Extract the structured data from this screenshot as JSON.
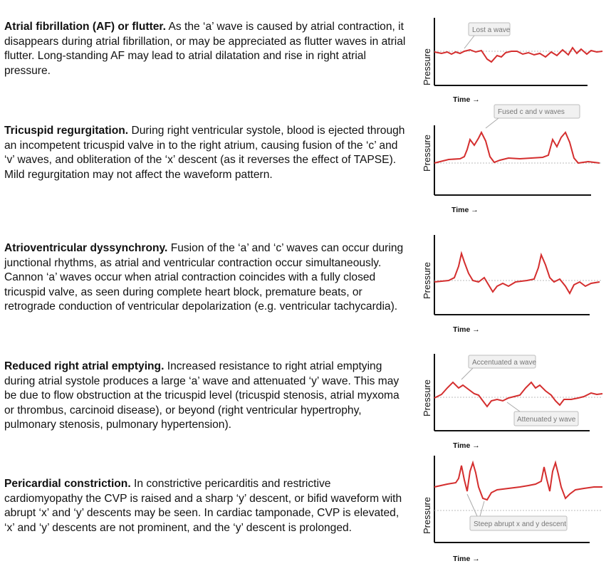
{
  "sections": [
    {
      "heading": "Atrial fibrillation (AF) or flutter.",
      "body": " As the ‘a’ wave is caused by atrial contraction, it disappears during atrial fibrillation, or may be appreciated as flutter waves in atrial flutter. Long-standing AF may lead to atrial dilatation and rise in right atrial pressure.",
      "panel": {
        "ylabel": "Pressure",
        "xlabel": "Time →",
        "callouts": [
          "Lost a wave"
        ]
      }
    },
    {
      "heading": "Tricuspid regurgitation.",
      "body": " During right ventricular systole, blood is ejected through an incompetent tricuspid valve in to the right atrium, causing fusion of the ‘c’ and ‘v’ waves, and obliteration of the ‘x’ descent (as it reverses the effect of TAPSE). Mild regurgitation may not affect the waveform pattern.",
      "panel": {
        "ylabel": "Pressure",
        "xlabel": "Time →",
        "callouts": [
          "Fused c and v waves"
        ]
      }
    },
    {
      "heading": "Atrioventricular dyssynchrony.",
      "body": " Fusion of the ‘a’ and ‘c’ waves can occur during junctional rhythms, as atrial and ventricular contraction occur simultaneously. Cannon ‘a’ waves occur when atrial contraction coincides with a fully closed tricuspid valve, as seen during complete heart block, premature beats, or retrograde conduction of ventricular depolarization (e.g. ventricular tachycardia).",
      "panel": {
        "ylabel": "Pressure",
        "xlabel": "Time →",
        "callouts": []
      }
    },
    {
      "heading": "Reduced right atrial emptying.",
      "body": " Increased resistance to right atrial emptying during atrial systole produces a large ‘a’ wave and attenuated  ‘y’ wave. This may be due to flow obstruction at the tricuspid level (tricuspid stenosis, atrial myxoma or thrombus, carcinoid disease), or beyond (right ventricular hypertrophy, pulmonary stenosis, pulmonary hypertension).",
      "panel": {
        "ylabel": "Pressure",
        "xlabel": "Time →",
        "callouts": [
          "Accentuated a wave",
          "Attenuated y wave"
        ]
      }
    },
    {
      "heading": "Pericardial constriction.",
      "body": " In constrictive pericarditis and restrictive cardiomyopathy the CVP is raised and a sharp ‘y’ descent, or bifid waveform with abrupt ‘x’ and ‘y’ descents may be seen. In cardiac tamponade, CVP is elevated, ‘x’ and ‘y’ descents are not prominent, and the ‘y’ descent is prolonged.",
      "panel": {
        "ylabel": "Pressure",
        "xlabel": "Time →",
        "callouts": [
          "Steep abrupt x and y descent"
        ]
      }
    }
  ],
  "colors": {
    "waveform": "#d42e2e",
    "baseline": "#bbbbbb",
    "axis": "#111111",
    "callout_border": "#bdbdbd",
    "callout_fill": "#f1f1f1"
  }
}
